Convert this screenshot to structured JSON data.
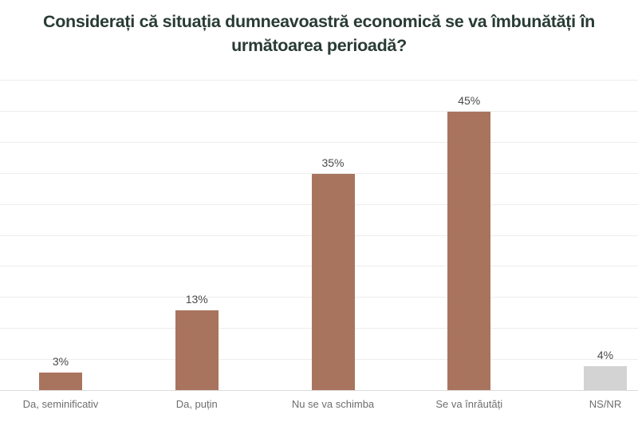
{
  "page": {
    "background": "#ffffff"
  },
  "chart_data": {
    "type": "bar",
    "title": "Considerați că situația dumneavoastră economică se va îmbunătăți în următoarea perioadă?",
    "categories": [
      "Da, seminificativ",
      "Da, puțin",
      "Nu se va schimba",
      "Se va înrăutăți",
      "NS/NR"
    ],
    "values": [
      3,
      13,
      35,
      45,
      4
    ],
    "value_labels": [
      "3%",
      "13%",
      "35%",
      "45%",
      "4%"
    ],
    "bar_colors": [
      "#A9745E",
      "#A9745E",
      "#A9745E",
      "#A9745E",
      "#D3D3D3"
    ],
    "accent_color": "#A9745E",
    "neutral_bar_color": "#D3D3D3",
    "title_color": "#293B35",
    "value_label_color": "#4A4A4A",
    "category_label_color": "#6E6E6E",
    "gridline_color": "#EDEDED",
    "axis_line_color": "#DCDCDC",
    "xlabel": "",
    "ylabel": "",
    "ylim": [
      0,
      50
    ],
    "grid_step": 5,
    "grid": true,
    "legend": "none",
    "y_tick_labels_visible": false
  }
}
